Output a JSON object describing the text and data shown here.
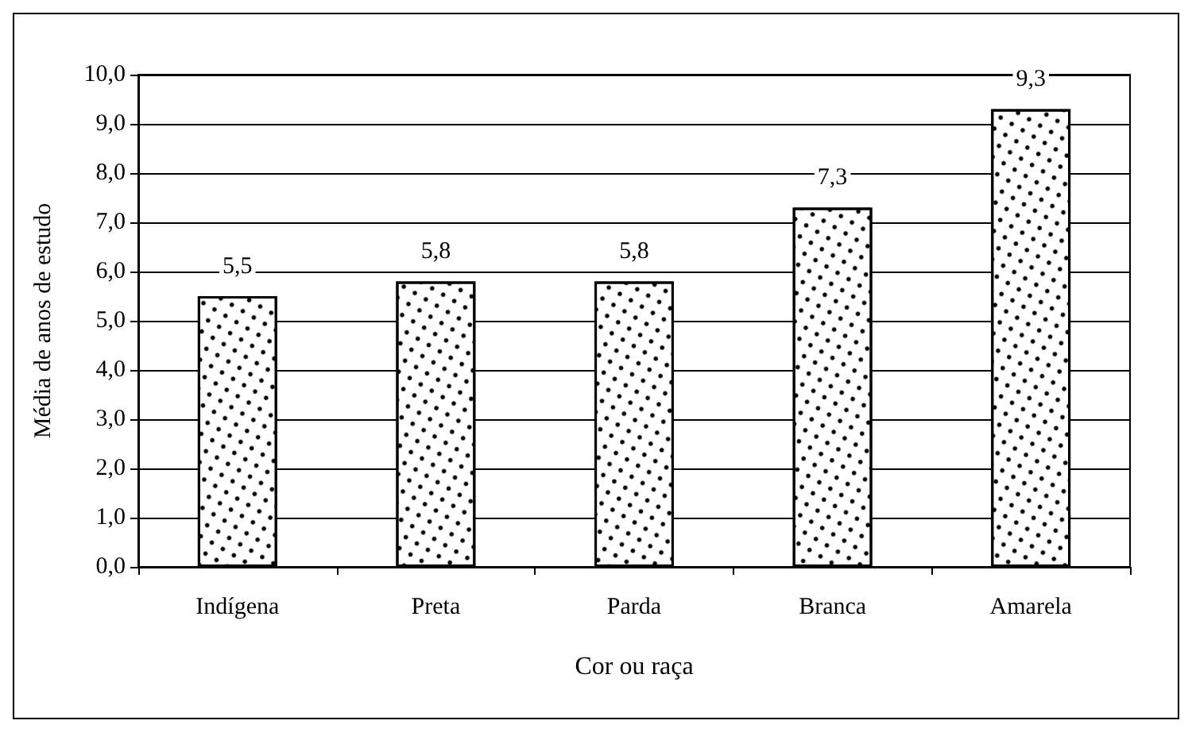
{
  "chart_data": {
    "type": "bar",
    "xlabel": "Cor ou raça",
    "ylabel": "Média de anos de estudo",
    "categories": [
      "Indígena",
      "Preta",
      "Parda",
      "Branca",
      "Amarela"
    ],
    "values": [
      5.5,
      5.8,
      5.8,
      7.3,
      9.3
    ],
    "value_labels": [
      "5,5",
      "5,8",
      "5,8",
      "7,3",
      "9,3"
    ],
    "color": "#ffffff",
    "ylim": [
      0,
      10
    ],
    "yticks": [
      {
        "value": 0,
        "label": "0,0"
      },
      {
        "value": 1,
        "label": "1,0"
      },
      {
        "value": 2,
        "label": "2,0"
      },
      {
        "value": 3,
        "label": "3,0"
      },
      {
        "value": 4,
        "label": "4,0"
      },
      {
        "value": 5,
        "label": "5,0"
      },
      {
        "value": 6,
        "label": "6,0"
      },
      {
        "value": 7,
        "label": "7,0"
      },
      {
        "value": 8,
        "label": "8,0"
      },
      {
        "value": 9,
        "label": "9,0"
      },
      {
        "value": 10,
        "label": "10,0"
      }
    ],
    "grid": "y"
  }
}
